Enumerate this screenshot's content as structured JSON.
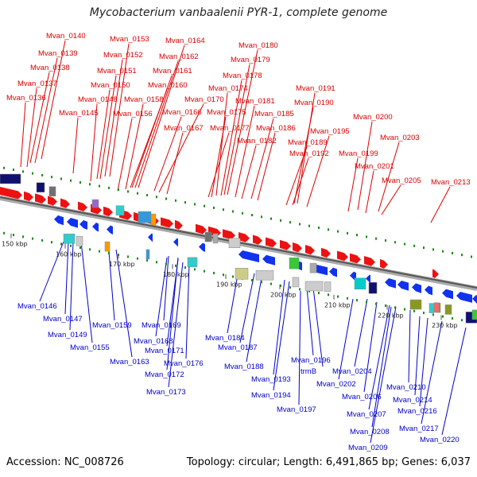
{
  "title": "Mycobacterium vanbaalenii PYR-1, complete genome",
  "accession_text": "Accession: NC_008726",
  "summary_text": "Topology: circular; Length: 6,491,865 bp; Genes: 6,037",
  "colors": {
    "forward_label": "#dd0000",
    "reverse_label": "#0000cc",
    "forward_gene": "#ee1111",
    "reverse_gene": "#1133ee",
    "backbone": "#8a8a8a",
    "tick": "#1a8a1a"
  },
  "scale_labels": [
    "150 kbp",
    "160 kbp",
    "170 kbp",
    "180 kbp",
    "190 kbp",
    "200 kbp",
    "210 kbp",
    "220 kbp",
    "230 kbp"
  ],
  "top_labels": [
    "Mvan_0140",
    "Mvan_0139",
    "Mvan_0138",
    "Mvan_0137",
    "Mvan_0136",
    "Mvan_0145",
    "Mvan_0153",
    "Mvan_0152",
    "Mvan_0151",
    "Mvan_0150",
    "Mvan_0148",
    "Mvan_0164",
    "Mvan_0162",
    "Mvan_0161",
    "Mvan_0160",
    "Mvan_0158",
    "Mvan_0156",
    "Mvan_0166",
    "Mvan_0170",
    "Mvan_0167",
    "Mvan_0180",
    "Mvan_0179",
    "Mvan_0178",
    "Mvan_0174",
    "Mvan_0181",
    "Mvan_0175",
    "Mvan_0177",
    "Mvan_0182",
    "Mvan_0185",
    "Mvan_0186",
    "Mvan_0191",
    "Mvan_0190",
    "Mvan_0189",
    "Mvan_0192",
    "Mvan_0195",
    "Mvan_0200",
    "Mvan_0203",
    "Mvan_0199",
    "Mvan_0201",
    "Mvan_0205",
    "Mvan_0213"
  ],
  "bottom_labels": [
    "Mvan_0146",
    "Mvan_0147",
    "Mvan_0149",
    "Mvan_0155",
    "Mvan_0159",
    "Mvan_0163",
    "Mvan_0169",
    "Mvan_0168",
    "Mvan_0171",
    "Mvan_0172",
    "Mvan_0176",
    "Mvan_0173",
    "Mvan_0184",
    "Mvan_0187",
    "Mvan_0188",
    "Mvan_0193",
    "Mvan_0194",
    "Mvan_0196",
    "trmB",
    "Mvan_0197",
    "Mvan_0204",
    "Mvan_0202",
    "Mvan_0206",
    "Mvan_0207",
    "Mvan_0208",
    "Mvan_0209",
    "Mvan_0210",
    "Mvan_0214",
    "Mvan_0216",
    "Mvan_0217",
    "Mvan_0220"
  ]
}
